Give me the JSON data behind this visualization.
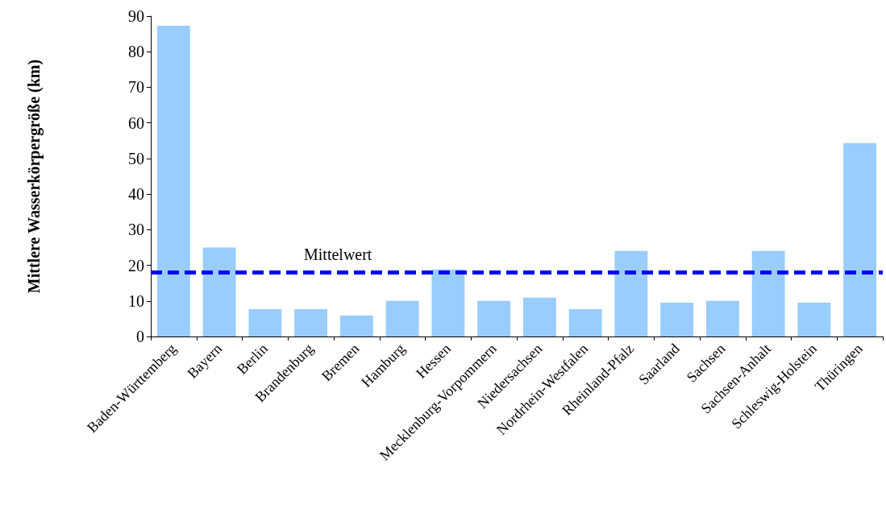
{
  "chart_data": {
    "type": "bar",
    "ylabel": "Mittlere Wasserkörpergröße (km)",
    "categories": [
      "Baden-Württemberg",
      "Bayern",
      "Berlin",
      "Brandenburg",
      "Bremen",
      "Hamburg",
      "Hessen",
      "Mecklenburg-Vorpommern",
      "Niedersachsen",
      "Nordrhein-Westfalen",
      "Rheinland-Pfalz",
      "Saarland",
      "Sachsen",
      "Sachsen-Anhalt",
      "Schleswig-Holstein",
      "Thüringen"
    ],
    "values": [
      87.3,
      25,
      7.7,
      7.7,
      5.9,
      10,
      18.8,
      10,
      10.9,
      7.7,
      24,
      9.5,
      10,
      24,
      9.5,
      54.3
    ],
    "color": "#99ccff",
    "ylim": [
      0,
      90
    ],
    "yticks": [
      0,
      10,
      20,
      30,
      40,
      50,
      60,
      70,
      80,
      90
    ],
    "grid": false,
    "ref_lines": [
      {
        "axis": "y",
        "value": 18,
        "label": "Mittelwert",
        "color": "#0000ff",
        "line_style": "dashed"
      }
    ]
  }
}
